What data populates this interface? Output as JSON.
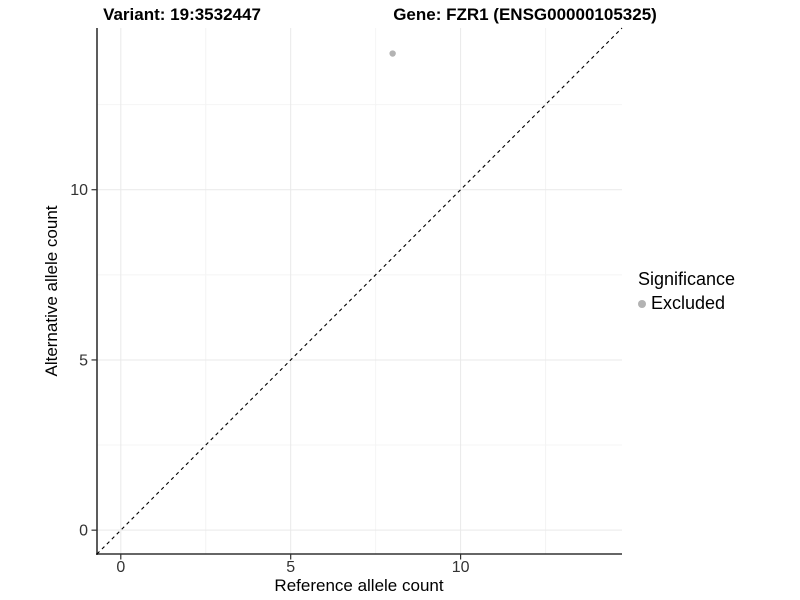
{
  "chart_data": {
    "type": "scatter",
    "title_left": "Variant: 19:3532447",
    "title_right": "Gene: FZR1 (ENSG00000105325)",
    "xlabel": "Reference allele count",
    "ylabel": "Alternative allele count",
    "xticks": [
      0,
      5,
      10
    ],
    "yticks": [
      0,
      5,
      10
    ],
    "minor_ticks": [
      2.5,
      7.5,
      12.5
    ],
    "xlim": [
      -0.7,
      14.75
    ],
    "ylim": [
      -0.7,
      14.75
    ],
    "grid": "major and minor, very light grey, on white panel",
    "identity_line": {
      "style": "dashed",
      "color": "#000000",
      "slope": 1,
      "intercept": 0
    },
    "series": [
      {
        "name": "Excluded",
        "color": "#b3b3b3",
        "points": [
          {
            "x": 8,
            "y": 14
          }
        ]
      }
    ],
    "legend": {
      "position": "right",
      "title": "Significance",
      "items": [
        {
          "label": "Excluded",
          "color": "#b3b3b3"
        }
      ]
    },
    "colors": {
      "grid_major": "#e9e9e9",
      "grid_minor": "#f4f4f4",
      "axis": "#333333",
      "tick_label": "#333333",
      "background": "#ffffff"
    }
  }
}
